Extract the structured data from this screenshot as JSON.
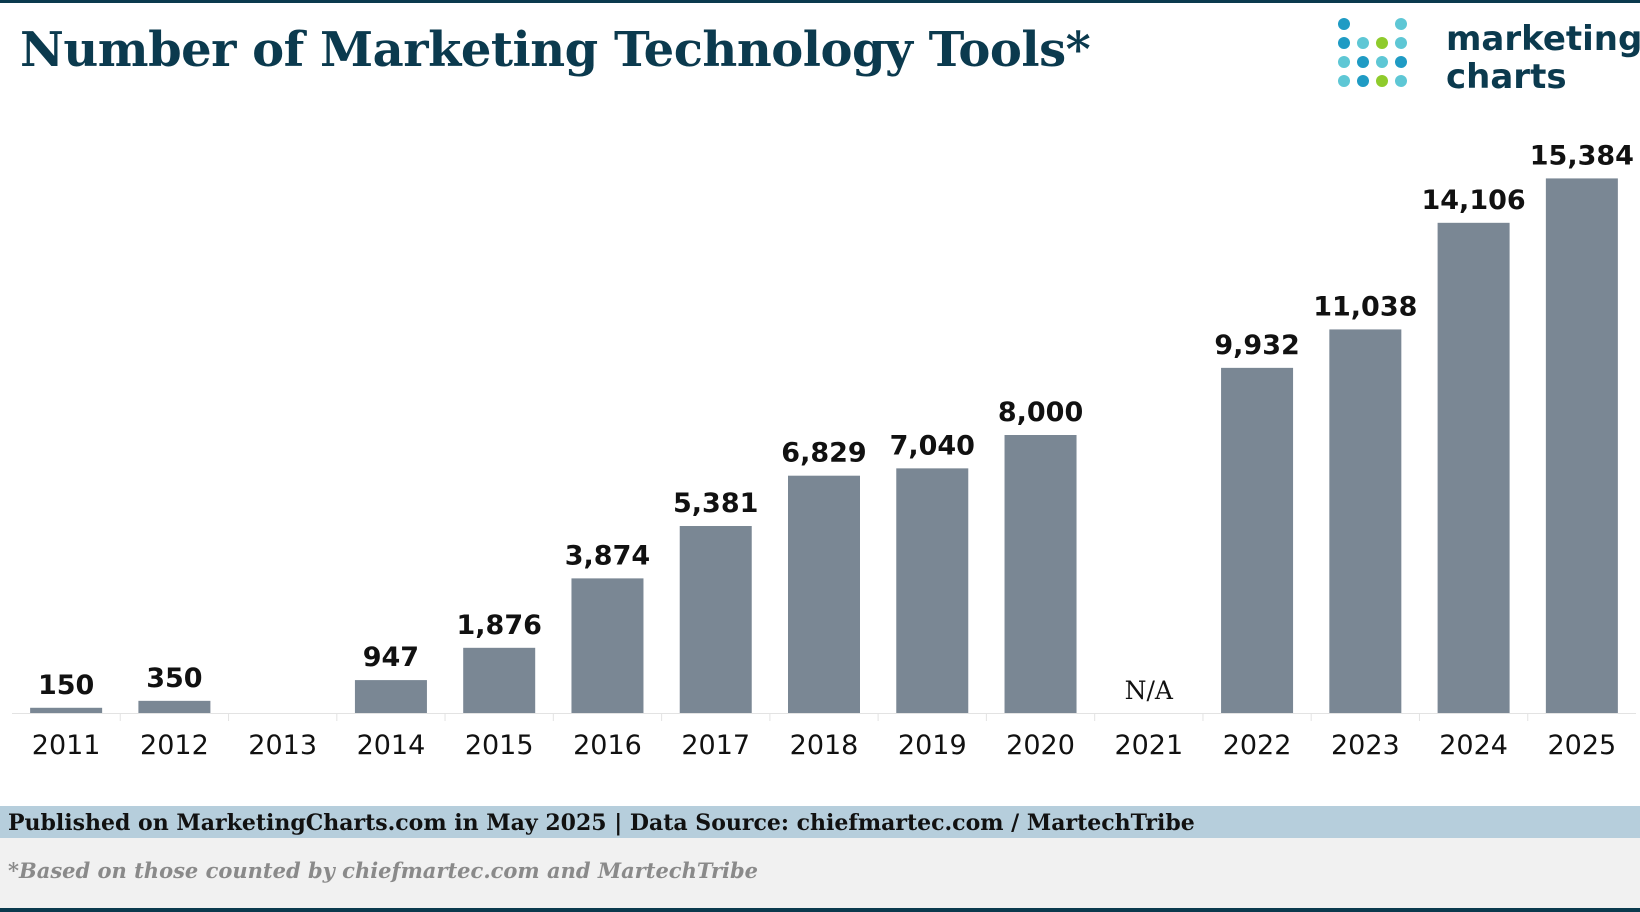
{
  "header": {
    "title": "Number of Marketing Technology Tools*",
    "logo_line1": "marketing",
    "logo_line2": "charts",
    "logo_dot_colors": [
      "#1f9bc4",
      "#5ec7d5",
      "#8fcb2c"
    ]
  },
  "footer": {
    "published": "Published on MarketingCharts.com in May 2025 | Data Source: chiefmartec.com / MartechTribe",
    "note": "*Based on those counted by chiefmartec.com and MartechTribe"
  },
  "colors": {
    "bar": "#7a8794",
    "title": "#0b3a4e",
    "footer_band": "#b6cedc"
  },
  "chart_data": {
    "type": "bar",
    "title": "Number of Marketing Technology Tools*",
    "xlabel": "",
    "ylabel": "",
    "categories": [
      "2011",
      "2012",
      "2013",
      "2014",
      "2015",
      "2016",
      "2017",
      "2018",
      "2019",
      "2020",
      "2021",
      "2022",
      "2023",
      "2024",
      "2025"
    ],
    "values": [
      150,
      350,
      null,
      947,
      1876,
      3874,
      5381,
      6829,
      7040,
      8000,
      null,
      9932,
      11038,
      14106,
      15384
    ],
    "labels": [
      "150",
      "350",
      "",
      "947",
      "1,876",
      "3,874",
      "5,381",
      "6,829",
      "7,040",
      "8,000",
      "N/A",
      "9,932",
      "11,038",
      "14,106",
      "15,384"
    ],
    "ylim": [
      0,
      16000
    ],
    "grid": false,
    "legend": "none"
  }
}
